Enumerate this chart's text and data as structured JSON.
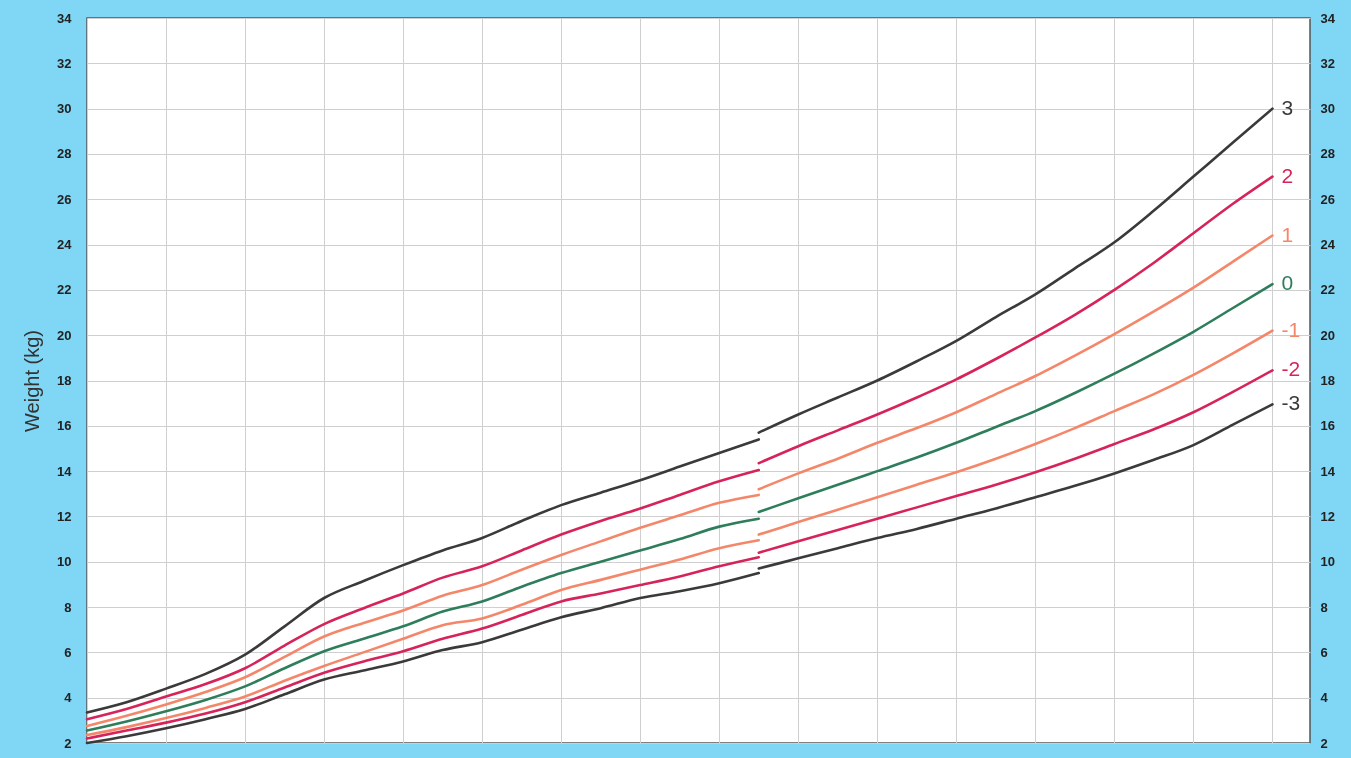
{
  "chart_data": {
    "type": "line",
    "ylabel": "Weight (kg)",
    "categories": [
      null,
      null,
      null,
      null,
      null,
      null,
      null,
      null,
      null,
      null,
      null,
      null,
      null,
      null,
      null,
      null,
      null,
      null,
      null,
      null,
      null,
      null,
      null,
      null,
      null,
      null,
      null,
      null,
      null,
      null,
      null
    ],
    "series": [
      {
        "color": "#3a3a3a",
        "values": [
          3.35,
          3.8,
          4.4,
          5.05,
          5.9,
          7.15,
          8.4,
          9.15,
          9.85,
          10.5,
          11.05,
          11.8,
          12.5,
          13.05,
          13.6,
          14.2,
          14.8,
          15.4,
          null,
          null,
          null,
          null,
          null,
          null,
          null,
          null,
          null,
          null,
          null,
          null,
          null
        ]
      },
      {
        "color": "#d6245a",
        "values": [
          3.05,
          3.5,
          4.05,
          4.6,
          5.3,
          6.3,
          7.25,
          7.95,
          8.6,
          9.3,
          9.8,
          10.5,
          11.2,
          11.8,
          12.35,
          12.95,
          13.55,
          14.05,
          null,
          null,
          null,
          null,
          null,
          null,
          null,
          null,
          null,
          null,
          null,
          null,
          null
        ]
      },
      {
        "color": "#f4876a",
        "values": [
          2.75,
          3.2,
          3.7,
          4.25,
          4.9,
          5.8,
          6.7,
          7.3,
          7.85,
          8.5,
          8.97,
          9.65,
          10.3,
          10.9,
          11.5,
          12.05,
          12.6,
          12.95,
          null,
          null,
          null,
          null,
          null,
          null,
          null,
          null,
          null,
          null,
          null,
          null,
          null
        ]
      },
      {
        "color": "#2e7d5b",
        "values": [
          2.55,
          2.95,
          3.4,
          3.9,
          4.5,
          5.3,
          6.05,
          6.6,
          7.15,
          7.8,
          8.25,
          8.9,
          9.5,
          10.0,
          10.5,
          11.0,
          11.55,
          11.9,
          null,
          null,
          null,
          null,
          null,
          null,
          null,
          null,
          null,
          null,
          null,
          null,
          null
        ]
      },
      {
        "color": "#f4876a",
        "values": [
          2.35,
          2.7,
          3.1,
          3.55,
          4.05,
          4.75,
          5.4,
          6.0,
          6.6,
          7.2,
          7.5,
          8.1,
          8.75,
          9.2,
          9.65,
          10.1,
          10.6,
          10.95,
          null,
          null,
          null,
          null,
          null,
          null,
          null,
          null,
          null,
          null,
          null,
          null,
          null
        ]
      },
      {
        "color": "#d6245a",
        "values": [
          2.2,
          2.55,
          2.9,
          3.3,
          3.8,
          4.45,
          5.1,
          5.6,
          6.05,
          6.6,
          7.05,
          7.65,
          8.25,
          8.6,
          8.97,
          9.35,
          9.8,
          10.2,
          null,
          null,
          null,
          null,
          null,
          null,
          null,
          null,
          null,
          null,
          null,
          null,
          null
        ]
      },
      {
        "color": "#3a3a3a",
        "values": [
          2.0,
          2.3,
          2.65,
          3.05,
          3.5,
          4.15,
          4.8,
          5.2,
          5.6,
          6.1,
          6.45,
          7.0,
          7.55,
          7.95,
          8.4,
          8.7,
          9.05,
          9.5,
          null,
          null,
          null,
          null,
          null,
          null,
          null,
          null,
          null,
          null,
          null,
          null,
          null
        ]
      },
      {
        "name": "3",
        "color": "#3a3a3a",
        "values": [
          null,
          null,
          null,
          null,
          null,
          null,
          null,
          null,
          null,
          null,
          null,
          null,
          null,
          null,
          null,
          null,
          null,
          15.7,
          16.5,
          17.25,
          18.0,
          18.85,
          19.75,
          20.8,
          21.8,
          22.95,
          24.1,
          25.5,
          27.0,
          28.5,
          30.0
        ]
      },
      {
        "name": "2",
        "color": "#d6245a",
        "values": [
          null,
          null,
          null,
          null,
          null,
          null,
          null,
          null,
          null,
          null,
          null,
          null,
          null,
          null,
          null,
          null,
          null,
          14.35,
          15.1,
          15.8,
          16.5,
          17.25,
          18.05,
          18.95,
          19.9,
          20.9,
          22.0,
          23.2,
          24.5,
          25.8,
          27.0
        ]
      },
      {
        "name": "1",
        "color": "#f4876a",
        "values": [
          null,
          null,
          null,
          null,
          null,
          null,
          null,
          null,
          null,
          null,
          null,
          null,
          null,
          null,
          null,
          null,
          null,
          13.2,
          13.9,
          14.55,
          15.25,
          15.9,
          16.6,
          17.4,
          18.2,
          19.1,
          20.05,
          21.05,
          22.1,
          23.25,
          24.4
        ]
      },
      {
        "name": "0",
        "color": "#2e7d5b",
        "values": [
          null,
          null,
          null,
          null,
          null,
          null,
          null,
          null,
          null,
          null,
          null,
          null,
          null,
          null,
          null,
          null,
          null,
          12.2,
          12.8,
          13.4,
          14.0,
          14.6,
          15.25,
          15.95,
          16.65,
          17.45,
          18.3,
          19.2,
          20.15,
          21.2,
          22.25
        ]
      },
      {
        "name": "-1",
        "color": "#f4876a",
        "values": [
          null,
          null,
          null,
          null,
          null,
          null,
          null,
          null,
          null,
          null,
          null,
          null,
          null,
          null,
          null,
          null,
          null,
          11.2,
          11.75,
          12.3,
          12.85,
          13.4,
          13.95,
          14.55,
          15.2,
          15.9,
          16.65,
          17.4,
          18.25,
          19.2,
          20.2
        ]
      },
      {
        "name": "-2",
        "color": "#d6245a",
        "values": [
          null,
          null,
          null,
          null,
          null,
          null,
          null,
          null,
          null,
          null,
          null,
          null,
          null,
          null,
          null,
          null,
          null,
          10.4,
          10.9,
          11.4,
          11.9,
          12.4,
          12.9,
          13.4,
          13.95,
          14.55,
          15.2,
          15.85,
          16.6,
          17.5,
          18.45
        ]
      },
      {
        "name": "-3",
        "color": "#3a3a3a",
        "values": [
          null,
          null,
          null,
          null,
          null,
          null,
          null,
          null,
          null,
          null,
          null,
          null,
          null,
          null,
          null,
          null,
          null,
          9.7,
          10.15,
          10.6,
          11.05,
          11.45,
          11.9,
          12.35,
          12.85,
          13.35,
          13.9,
          14.5,
          15.15,
          16.05,
          16.95
        ]
      }
    ],
    "ylim": [
      2,
      34
    ],
    "yticks": [
      2,
      4,
      6,
      8,
      10,
      12,
      14,
      16,
      18,
      20,
      22,
      24,
      26,
      28,
      30,
      32,
      34
    ],
    "y2lim": [
      2,
      34
    ],
    "y2ticks": [
      2,
      4,
      6,
      8,
      10,
      12,
      14,
      16,
      18,
      20,
      22,
      24,
      26,
      28,
      30,
      32,
      34
    ],
    "tick_labels": "y",
    "grid": true,
    "marker": "none",
    "line_style": "solid"
  }
}
